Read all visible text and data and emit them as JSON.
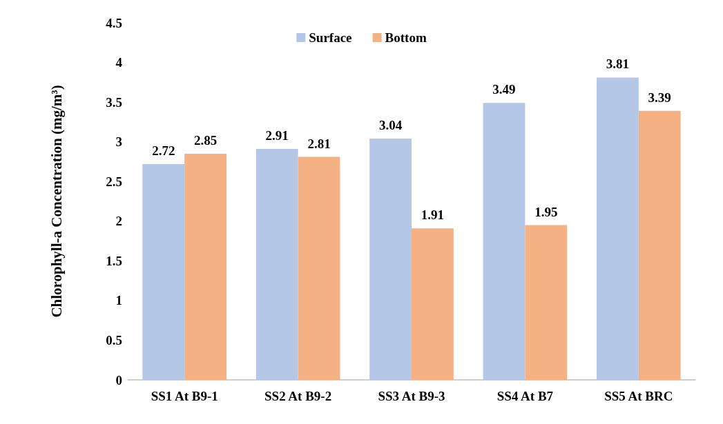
{
  "chart_data": {
    "type": "bar",
    "ylabel": "Chlorophyll-a Concentration (mg/m³)",
    "categories": [
      "SS1 At B9-1",
      "SS2 At B9-2",
      "SS3 At B9-3",
      "SS4 At B7",
      "SS5 At BRC"
    ],
    "series": [
      {
        "name": "Surface",
        "color": "#b4c7e7",
        "values": [
          2.72,
          2.91,
          3.04,
          3.49,
          3.81
        ]
      },
      {
        "name": "Bottom",
        "color": "#f4b183",
        "values": [
          2.85,
          2.81,
          1.91,
          1.95,
          3.39
        ]
      }
    ],
    "ylim": [
      0,
      4.5
    ],
    "yticks": [
      0,
      0.5,
      1,
      1.5,
      2,
      2.5,
      3,
      3.5,
      4,
      4.5
    ],
    "data_labels": true,
    "grid": false,
    "legend": "top"
  }
}
